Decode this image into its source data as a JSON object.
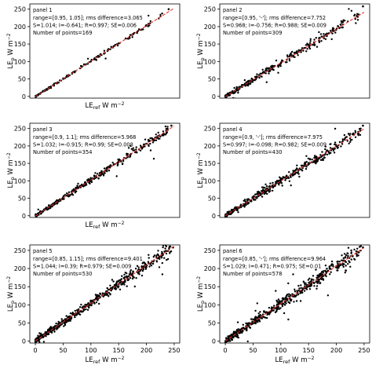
{
  "chart_data": [
    {
      "type": "scatter",
      "panel_label": "panel 1",
      "stats": [
        "range=[0.95, 1.05]; rms difference=3.065",
        "S=1.014; I=-0.641; R=0.997; SE=0.006",
        "Number of points=169"
      ],
      "ylabel_main": "LE",
      "ylabel_sub": "p",
      "ylabel_unit": " W m",
      "ylabel_exp": "−2",
      "xlabel_main": "LE",
      "xlabel_sub": "ref",
      "xlabel_unit": " W m",
      "xlabel_exp": "−2",
      "xlim": [
        -10,
        260
      ],
      "ylim": [
        -5,
        265
      ],
      "xticks": [],
      "yticks": [
        0,
        50,
        100,
        150,
        200,
        250
      ],
      "tick_labels_x": [],
      "tick_labels_y": [
        "0",
        "50",
        "100",
        "150",
        "200",
        "250"
      ],
      "fit": {
        "slope": 1.014,
        "intercept": -0.641
      },
      "n_points": 169,
      "spread": 4,
      "max": 230,
      "sample_points": [
        [
          5,
          4
        ],
        [
          20,
          19
        ],
        [
          60,
          61
        ],
        [
          100,
          100
        ],
        [
          150,
          152
        ],
        [
          200,
          204
        ],
        [
          240,
          250
        ]
      ]
    },
    {
      "type": "scatter",
      "panel_label": "panel 2",
      "stats": [
        "range=[0.95, '-']; rms difference=7.752",
        "S=0.968; I=-0.756; R=0.988; SE=0.009",
        "Number of points=309"
      ],
      "ylabel_main": "LE",
      "ylabel_sub": "p",
      "ylabel_unit": " W m",
      "ylabel_exp": "−2",
      "xlabel_main": "",
      "xlabel_sub": "",
      "xlabel_unit": "",
      "xlabel_exp": "",
      "xlim": [
        -10,
        260
      ],
      "ylim": [
        -5,
        265
      ],
      "xticks": [],
      "yticks": [
        0,
        50,
        100,
        150,
        200,
        250
      ],
      "tick_labels_x": [],
      "tick_labels_y": [
        "0",
        "50",
        "100",
        "150",
        "200",
        "250"
      ],
      "fit": {
        "slope": 0.968,
        "intercept": -0.756
      },
      "n_points": 309,
      "spread": 9,
      "max": 240,
      "sample_points": [
        [
          5,
          3
        ],
        [
          50,
          47
        ],
        [
          100,
          95
        ],
        [
          160,
          155
        ],
        [
          210,
          198
        ],
        [
          248,
          258
        ]
      ]
    },
    {
      "type": "scatter",
      "panel_label": "panel 3",
      "stats": [
        "range=[0.9, 1.1]; rms difference=5.968",
        "S=1.032; I=-0.915; R=0.99; SE=0.008",
        "Number of points=354"
      ],
      "ylabel_main": "LE",
      "ylabel_sub": "p",
      "ylabel_unit": " W m",
      "ylabel_exp": "−2",
      "xlabel_main": "LE",
      "xlabel_sub": "ref",
      "xlabel_unit": " W m",
      "xlabel_exp": "−2",
      "xlim": [
        -10,
        260
      ],
      "ylim": [
        -5,
        265
      ],
      "xticks": [],
      "yticks": [
        0,
        50,
        100,
        150,
        200,
        250
      ],
      "tick_labels_x": [],
      "tick_labels_y": [
        "0",
        "50",
        "100",
        "150",
        "200",
        "250"
      ],
      "fit": {
        "slope": 1.032,
        "intercept": -0.915
      },
      "n_points": 354,
      "spread": 7,
      "max": 240,
      "sample_points": [
        [
          5,
          4
        ],
        [
          50,
          51
        ],
        [
          100,
          103
        ],
        [
          150,
          155
        ],
        [
          200,
          206
        ],
        [
          245,
          258
        ]
      ]
    },
    {
      "type": "scatter",
      "panel_label": "panel 4",
      "stats": [
        "range=[0.9, '-']; rms difference=7.975",
        "S=0.997; I=-0.098; R=0.982; SE=0.009",
        "Number of points=430"
      ],
      "ylabel_main": "LE",
      "ylabel_sub": "p",
      "ylabel_unit": " W m",
      "ylabel_exp": "−2",
      "xlabel_main": "",
      "xlabel_sub": "",
      "xlabel_unit": "",
      "xlabel_exp": "",
      "xlim": [
        -10,
        260
      ],
      "ylim": [
        -5,
        265
      ],
      "xticks": [],
      "yticks": [
        0,
        50,
        100,
        150,
        200,
        250
      ],
      "tick_labels_x": [],
      "tick_labels_y": [
        "0",
        "50",
        "100",
        "150",
        "200",
        "250"
      ],
      "fit": {
        "slope": 0.997,
        "intercept": -0.098
      },
      "n_points": 430,
      "spread": 10,
      "max": 245,
      "sample_points": [
        [
          5,
          4
        ],
        [
          50,
          50
        ],
        [
          100,
          99
        ],
        [
          150,
          150
        ],
        [
          200,
          199
        ],
        [
          248,
          258
        ]
      ]
    },
    {
      "type": "scatter",
      "panel_label": "panel 5",
      "stats": [
        "range=[0.85, 1.15]; rms difference=9.401",
        "S=1.044; I=0.39; R=0.979; SE=0.009",
        "Number of points=530"
      ],
      "ylabel_main": "LE",
      "ylabel_sub": "p",
      "ylabel_unit": " W m",
      "ylabel_exp": "−2",
      "xlabel_main": "LE",
      "xlabel_sub": "ref",
      "xlabel_unit": " W m",
      "xlabel_exp": "−2",
      "xlim": [
        -10,
        260
      ],
      "ylim": [
        -5,
        265
      ],
      "xticks": [
        0,
        50,
        100,
        150,
        200,
        250
      ],
      "yticks": [
        0,
        50,
        100,
        150,
        200,
        250
      ],
      "tick_labels_x": [
        "0",
        "50",
        "100",
        "150",
        "200",
        "250"
      ],
      "tick_labels_y": [
        "0",
        "50",
        "100",
        "150",
        "200",
        "250"
      ],
      "fit": {
        "slope": 1.044,
        "intercept": 0.39
      },
      "n_points": 530,
      "spread": 11,
      "max": 245,
      "sample_points": [
        [
          5,
          5
        ],
        [
          50,
          53
        ],
        [
          100,
          105
        ],
        [
          150,
          157
        ],
        [
          200,
          209
        ],
        [
          248,
          258
        ]
      ]
    },
    {
      "type": "scatter",
      "panel_label": "panel 6",
      "stats": [
        "range=[0.85, '-']; rms difference=9.964",
        "S=1.029; I=0.471; R=0.975; SE=0.01",
        "Number of points=578"
      ],
      "ylabel_main": "LE",
      "ylabel_sub": "p",
      "ylabel_unit": " W m",
      "ylabel_exp": "−2",
      "xlabel_main": "LE",
      "xlabel_sub": "ref",
      "xlabel_unit": " W m",
      "xlabel_exp": "−2",
      "xlim": [
        -10,
        260
      ],
      "ylim": [
        -5,
        265
      ],
      "xticks": [
        0,
        50,
        100,
        150,
        200,
        250
      ],
      "yticks": [
        0,
        50,
        100,
        150,
        200,
        250
      ],
      "tick_labels_x": [
        "0",
        "50",
        "100",
        "150",
        "200",
        "250"
      ],
      "tick_labels_y": [
        "0",
        "50",
        "100",
        "150",
        "200",
        "250"
      ],
      "fit": {
        "slope": 1.029,
        "intercept": 0.471
      },
      "n_points": 578,
      "spread": 12,
      "max": 245,
      "sample_points": [
        [
          5,
          5
        ],
        [
          50,
          52
        ],
        [
          100,
          103
        ],
        [
          150,
          155
        ],
        [
          200,
          206
        ],
        [
          248,
          258
        ]
      ]
    }
  ]
}
